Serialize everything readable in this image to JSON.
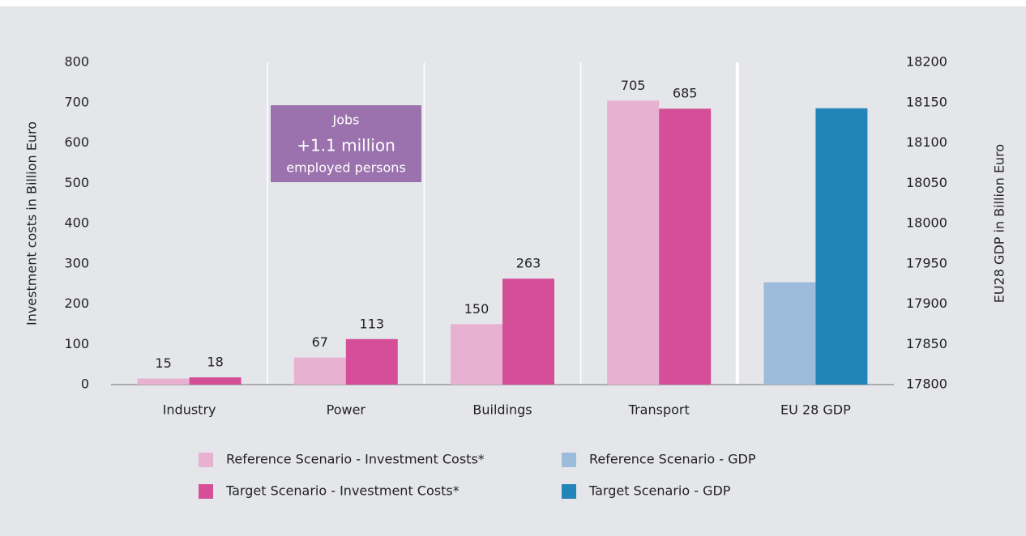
{
  "chart_data": {
    "type": "bar",
    "categories": [
      "Industry",
      "Power",
      "Buildings",
      "Transport",
      "EU 28 GDP"
    ],
    "series": [
      {
        "name": "Reference Scenario - Investment Costs*",
        "color": "#e8b0d1",
        "values": [
          15,
          67,
          150,
          705,
          null
        ],
        "data_labels": true
      },
      {
        "name": "Target Scenario - Investment Costs*",
        "color": "#d44f98",
        "values": [
          18,
          113,
          263,
          685,
          null
        ],
        "data_labels": true
      },
      {
        "name": "Reference Scenario - GDP",
        "color": "#9dbcdc",
        "values": [
          null,
          null,
          null,
          null,
          17927
        ],
        "axis": "y2",
        "data_labels": false
      },
      {
        "name": "Target Scenario - GDP",
        "color": "#2284b8",
        "values": [
          null,
          null,
          null,
          null,
          18143
        ],
        "axis": "y2",
        "data_labels": false
      }
    ],
    "ylabel": "Investment costs in Billion Euro",
    "y2label": "EU28 GDP in Billion Euro",
    "ylim": [
      0,
      800
    ],
    "yticks": [
      0,
      100,
      200,
      300,
      400,
      500,
      600,
      700,
      800
    ],
    "y2lim": [
      17800,
      18200
    ],
    "y2ticks": [
      17800,
      17850,
      17900,
      17950,
      18000,
      18050,
      18100,
      18150,
      18200
    ],
    "grid": false,
    "annotation": {
      "title": "Jobs",
      "value": "+1.1 million",
      "text": "employed persons"
    }
  }
}
